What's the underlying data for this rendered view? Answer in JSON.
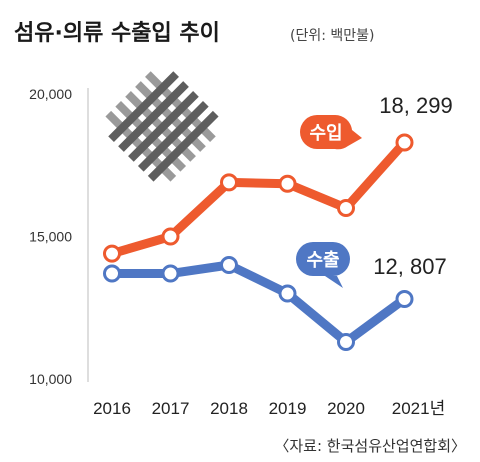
{
  "header": {
    "title": "섬유·의류 수출입 추이",
    "unit": "(단위: 백만불)"
  },
  "source": "〈자료: 한국섬유산업연합회〉",
  "colors": {
    "import": "#ee5a2e",
    "export": "#4f77c4"
  },
  "chart_data": {
    "type": "line",
    "categories": [
      "2016",
      "2017",
      "2018",
      "2019",
      "2020",
      "2021년"
    ],
    "ylim": [
      10000,
      20000
    ],
    "yticks": [
      "10,000",
      "15,000",
      "20,000"
    ],
    "grid": false,
    "series": [
      {
        "name": "수입",
        "values": [
          14400,
          15000,
          16900,
          16850,
          16000,
          18299
        ]
      },
      {
        "name": "수출",
        "values": [
          13700,
          13700,
          14000,
          13000,
          11300,
          12807
        ]
      }
    ],
    "annotations": [
      {
        "series": "수입",
        "label": "18, 299"
      },
      {
        "series": "수출",
        "label": "12, 807"
      }
    ]
  }
}
